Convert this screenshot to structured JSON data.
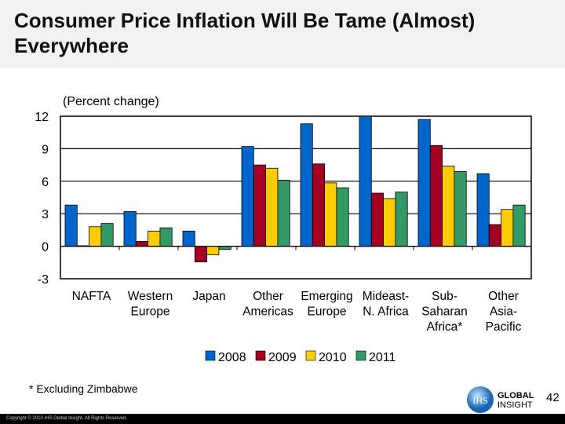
{
  "title": "Consumer Price Inflation Will Be Tame (Almost) Everywhere",
  "footnote": "* Excluding Zimbabwe",
  "page_number": "42",
  "copyright": "Copyright © 2010 IHS Global Insight. All Rights Reserved.",
  "logo": {
    "mark": "IHS",
    "line1": "GLOBAL",
    "line2": "INSIGHT"
  },
  "chart_data": {
    "type": "bar",
    "title": "",
    "unit_label": "(Percent change)",
    "ylim": [
      -3,
      12
    ],
    "yticks": [
      12,
      9,
      6,
      3,
      0,
      -3
    ],
    "grid": true,
    "legend_position": "bottom",
    "categories": [
      [
        "NAFTA"
      ],
      [
        "Western",
        "Europe"
      ],
      [
        "Japan"
      ],
      [
        "Other",
        "Americas"
      ],
      [
        "Emerging",
        "Europe"
      ],
      [
        "Mideast-",
        "N. Africa"
      ],
      [
        "Sub-",
        "Saharan",
        "Africa*"
      ],
      [
        "Other",
        "Asia-",
        "Pacific"
      ]
    ],
    "series": [
      {
        "name": "2008",
        "color": "#0066cc",
        "values": [
          3.8,
          3.2,
          1.4,
          9.2,
          11.3,
          12.1,
          11.7,
          6.7
        ]
      },
      {
        "name": "2009",
        "color": "#a50021",
        "values": [
          0.05,
          0.45,
          -1.45,
          7.5,
          7.6,
          4.9,
          9.3,
          2.0
        ]
      },
      {
        "name": "2010",
        "color": "#ffcc00",
        "values": [
          1.8,
          1.4,
          -0.8,
          7.2,
          5.85,
          4.4,
          7.4,
          3.4
        ]
      },
      {
        "name": "2011",
        "color": "#339966",
        "values": [
          2.1,
          1.7,
          -0.3,
          6.1,
          5.4,
          5.0,
          6.9,
          3.8
        ]
      }
    ]
  }
}
